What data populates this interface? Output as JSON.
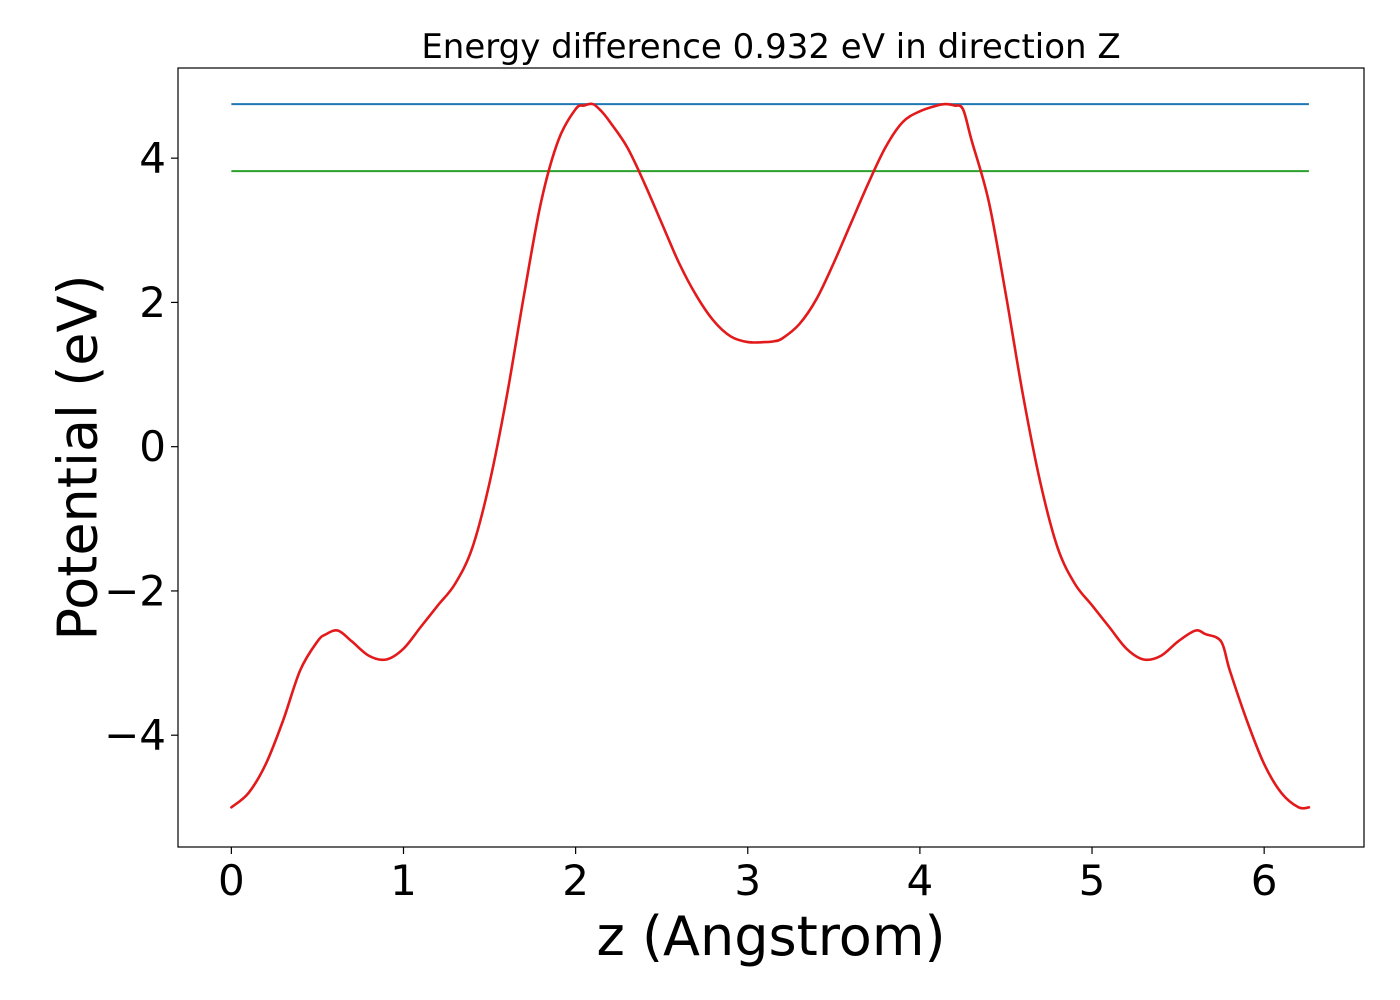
{
  "chart_data": {
    "type": "line",
    "title": "Energy difference 0.932 eV in direction Z",
    "xlabel": "z (Angstrom)",
    "ylabel": "Potential (eV)",
    "xlim": [
      -0.31,
      6.58
    ],
    "ylim": [
      -5.55,
      5.25
    ],
    "xticks": [
      0,
      1,
      2,
      3,
      4,
      5,
      6
    ],
    "xtick_labels": [
      "0",
      "1",
      "2",
      "3",
      "4",
      "5",
      "6"
    ],
    "yticks": [
      -4,
      -2,
      0,
      2,
      4
    ],
    "ytick_labels": [
      "−4",
      "−2",
      "0",
      "2",
      "4"
    ],
    "grid": false,
    "legend": "none",
    "hlines": [
      {
        "y": 4.75,
        "x": [
          0,
          6.26
        ],
        "color": "#1f77b4"
      },
      {
        "y": 3.82,
        "x": [
          0,
          6.26
        ],
        "color": "#2ca02c"
      }
    ],
    "series": [
      {
        "color": "#e31a1c",
        "x": [
          0,
          0.1,
          0.2,
          0.3,
          0.4,
          0.5,
          0.55,
          0.62,
          0.7,
          0.8,
          0.9,
          1.0,
          1.1,
          1.2,
          1.3,
          1.4,
          1.5,
          1.6,
          1.7,
          1.8,
          1.9,
          2.0,
          2.05,
          2.1,
          2.15,
          2.2,
          2.3,
          2.4,
          2.5,
          2.6,
          2.7,
          2.8,
          2.9,
          3.0,
          3.1,
          3.15,
          3.2,
          3.3,
          3.4,
          3.5,
          3.6,
          3.7,
          3.8,
          3.9,
          4.0,
          4.1,
          4.15,
          4.2,
          4.25,
          4.3,
          4.4,
          4.5,
          4.6,
          4.7,
          4.8,
          4.9,
          5.0,
          5.1,
          5.2,
          5.3,
          5.4,
          5.5,
          5.6,
          5.66,
          5.75,
          5.8,
          5.9,
          6.0,
          6.1,
          6.2,
          6.26
        ],
        "y": [
          -5.0,
          -4.8,
          -4.4,
          -3.8,
          -3.1,
          -2.7,
          -2.6,
          -2.55,
          -2.7,
          -2.9,
          -2.95,
          -2.8,
          -2.5,
          -2.2,
          -1.9,
          -1.4,
          -0.5,
          0.7,
          2.1,
          3.4,
          4.25,
          4.68,
          4.73,
          4.75,
          4.65,
          4.5,
          4.15,
          3.65,
          3.1,
          2.55,
          2.1,
          1.75,
          1.53,
          1.45,
          1.45,
          1.46,
          1.5,
          1.7,
          2.05,
          2.55,
          3.1,
          3.65,
          4.15,
          4.5,
          4.65,
          4.73,
          4.75,
          4.73,
          4.68,
          4.25,
          3.4,
          2.1,
          0.7,
          -0.5,
          -1.4,
          -1.9,
          -2.2,
          -2.5,
          -2.8,
          -2.95,
          -2.9,
          -2.7,
          -2.55,
          -2.6,
          -2.7,
          -3.1,
          -3.8,
          -4.4,
          -4.8,
          -5.0,
          -5.0
        ]
      }
    ]
  }
}
